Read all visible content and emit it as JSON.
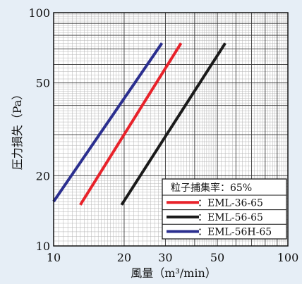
{
  "chart_data": {
    "type": "line",
    "title": "",
    "xlabel": "風量（m³/min）",
    "ylabel": "圧力損失（Pa）",
    "x_scale": "log",
    "y_scale": "log",
    "xlim": [
      10,
      100
    ],
    "ylim": [
      10,
      100
    ],
    "grid": true,
    "x_ticks": [
      10,
      20,
      30,
      50,
      100
    ],
    "x_tick_labels": [
      "10",
      "20",
      "30",
      "50",
      "100"
    ],
    "y_ticks": [
      10,
      20,
      50,
      100
    ],
    "y_tick_labels": [
      "10",
      "20",
      "50",
      "100"
    ],
    "legend": {
      "title": "粒子捕集率：65%",
      "placement": "bottom-right"
    },
    "series": [
      {
        "name": "：EML-36-65",
        "color": "#e8222a",
        "x": [
          13,
          35
        ],
        "y": [
          15,
          74
        ]
      },
      {
        "name": "：EML-56-65",
        "color": "#1a1a1a",
        "x": [
          19.5,
          54
        ],
        "y": [
          15,
          74
        ]
      },
      {
        "name": "：EML-56H-65",
        "color": "#2b2f8f",
        "x": [
          10,
          29
        ],
        "y": [
          15.5,
          74
        ]
      }
    ]
  }
}
